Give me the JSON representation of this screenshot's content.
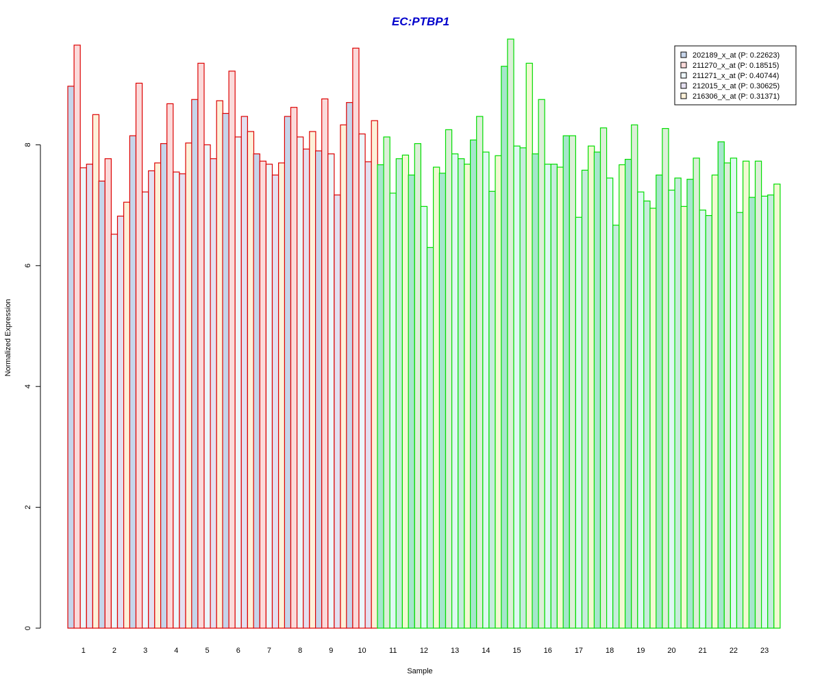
{
  "chart_data": {
    "type": "bar",
    "title": "EC:PTBP1",
    "xlabel": "Sample",
    "ylabel": "Normalized Expression",
    "ylim": [
      0,
      9.8
    ],
    "yticks": [
      "0",
      "2",
      "4",
      "6",
      "8"
    ],
    "categories": [
      "1",
      "2",
      "3",
      "4",
      "5",
      "6",
      "7",
      "8",
      "9",
      "10",
      "11",
      "12",
      "13",
      "14",
      "15",
      "16",
      "17",
      "18",
      "19",
      "20",
      "21",
      "22",
      "23"
    ],
    "group_colors": [
      "#dd0000",
      "#dd0000",
      "#dd0000",
      "#dd0000",
      "#dd0000",
      "#dd0000",
      "#dd0000",
      "#dd0000",
      "#dd0000",
      "#dd0000",
      "#00dd00",
      "#00dd00",
      "#00dd00",
      "#00dd00",
      "#00dd00",
      "#00dd00",
      "#00dd00",
      "#00dd00",
      "#00dd00",
      "#00dd00",
      "#00dd00",
      "#00dd00",
      "#00dd00"
    ],
    "legend_position": "top-right",
    "grid": false,
    "series": [
      {
        "name": "202189_x_at (P: 0.22623)",
        "fill": "#c6d5ea",
        "fill_green": "#a6e6cc",
        "values": [
          8.97,
          7.4,
          8.15,
          8.02,
          8.75,
          8.52,
          7.85,
          8.47,
          7.9,
          8.7,
          7.67,
          7.5,
          7.53,
          8.08,
          9.3,
          7.85,
          8.15,
          7.88,
          7.76,
          7.5,
          7.43,
          8.05,
          7.13
        ]
      },
      {
        "name": "211270_x_at (P: 0.18515)",
        "fill": "#fbdada",
        "fill_green": "#dcefd8",
        "values": [
          9.65,
          7.77,
          9.02,
          8.68,
          9.35,
          9.22,
          7.73,
          8.62,
          8.76,
          9.6,
          8.13,
          8.02,
          8.25,
          8.47,
          9.75,
          8.75,
          8.15,
          8.28,
          8.33,
          8.27,
          7.78,
          7.7,
          7.73
        ]
      },
      {
        "name": "211271_x_at (P: 0.40744)",
        "fill": "#ecf6fb",
        "fill_green": "#def8f2",
        "values": [
          7.62,
          6.52,
          7.22,
          7.55,
          8.0,
          8.13,
          7.68,
          8.13,
          7.85,
          8.18,
          7.2,
          6.98,
          7.85,
          7.88,
          7.98,
          7.68,
          6.8,
          7.45,
          7.22,
          7.25,
          6.92,
          7.78,
          7.15
        ]
      },
      {
        "name": "212015_x_at (P: 0.30625)",
        "fill": "#e4dff0",
        "fill_green": "#c6ecdc",
        "values": [
          7.68,
          6.82,
          7.57,
          7.52,
          7.77,
          8.47,
          7.5,
          7.93,
          7.17,
          7.72,
          7.77,
          6.3,
          7.77,
          7.23,
          7.95,
          7.68,
          7.58,
          6.67,
          7.07,
          7.45,
          6.83,
          6.88,
          7.17
        ]
      },
      {
        "name": "216306_x_at (P: 0.31371)",
        "fill": "#fdf1d9",
        "fill_green": "#f2f9d2",
        "values": [
          8.5,
          7.05,
          7.7,
          8.03,
          8.73,
          8.22,
          7.7,
          8.22,
          8.33,
          8.4,
          7.83,
          7.63,
          7.68,
          7.82,
          9.35,
          7.63,
          7.98,
          7.67,
          6.95,
          6.98,
          7.5,
          7.73,
          7.35
        ]
      }
    ]
  }
}
